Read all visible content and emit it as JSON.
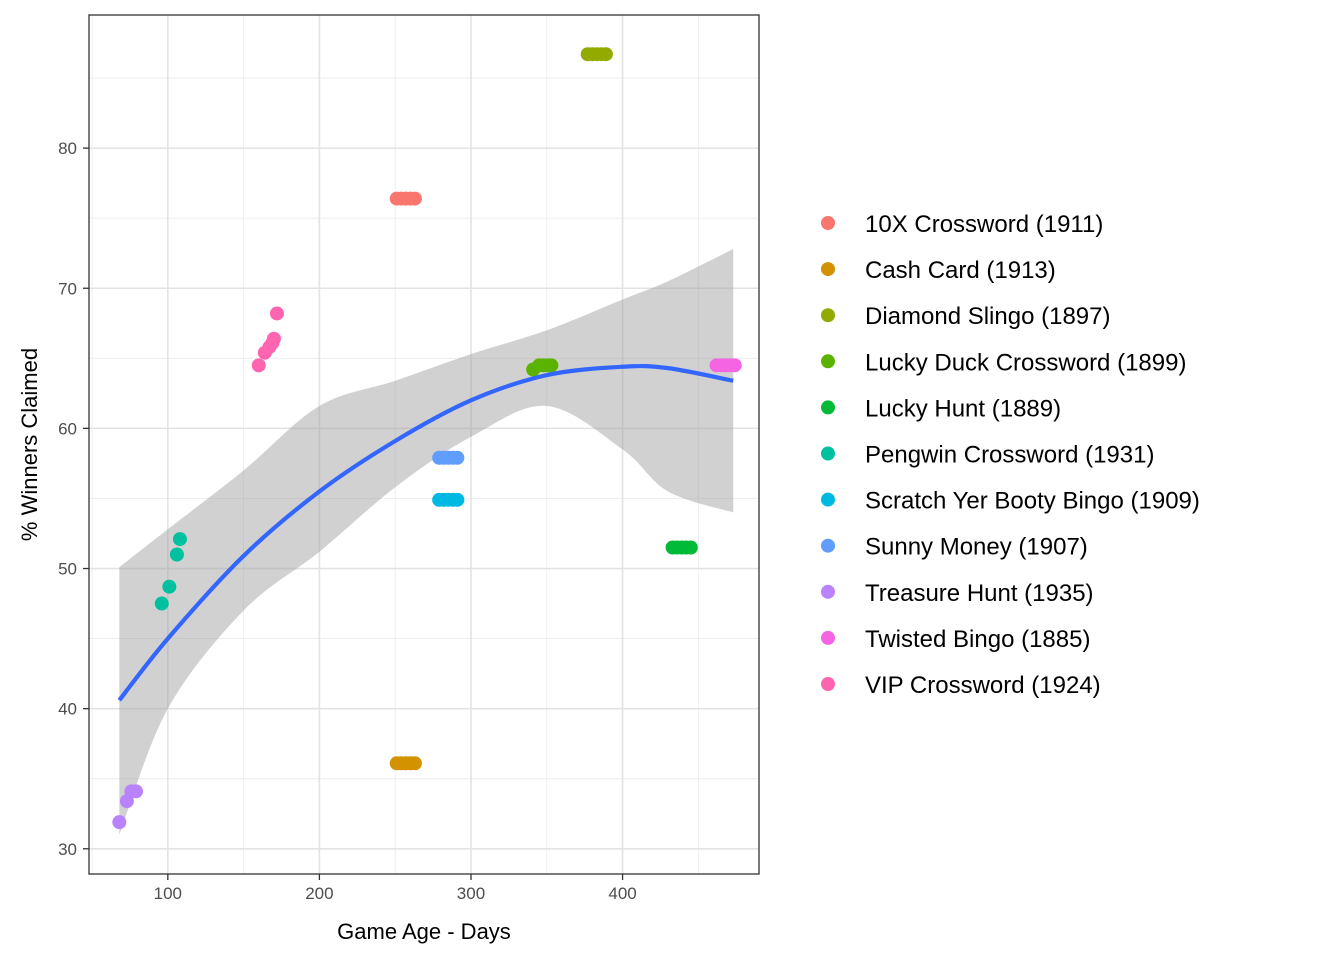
{
  "chart_data": {
    "type": "scatter",
    "title": "",
    "xlabel": "Game Age - Days",
    "ylabel": "% Winners Claimed",
    "xlim": [
      48,
      490
    ],
    "ylim": [
      28.2,
      89.5
    ],
    "x_ticks": [
      100,
      200,
      300,
      400
    ],
    "y_ticks": [
      30,
      40,
      50,
      60,
      70,
      80
    ],
    "grid": true,
    "legend": "right",
    "series": [
      {
        "name": "10X Crossword (1911)",
        "color": "#F8766D",
        "points": [
          [
            251,
            76.4
          ],
          [
            254,
            76.4
          ],
          [
            257,
            76.4
          ],
          [
            260,
            76.4
          ],
          [
            263,
            76.4
          ]
        ]
      },
      {
        "name": "Cash Card (1913)",
        "color": "#D39200",
        "points": [
          [
            251,
            36.1
          ],
          [
            254,
            36.1
          ],
          [
            257,
            36.1
          ],
          [
            260,
            36.1
          ],
          [
            263,
            36.1
          ]
        ]
      },
      {
        "name": "Diamond Slingo (1897)",
        "color": "#93AA00",
        "points": [
          [
            377,
            86.7
          ],
          [
            380,
            86.7
          ],
          [
            383,
            86.7
          ],
          [
            386,
            86.7
          ],
          [
            389,
            86.7
          ]
        ]
      },
      {
        "name": "Lucky Duck Crossword (1899)",
        "color": "#5BB300",
        "points": [
          [
            341,
            64.2
          ],
          [
            345,
            64.5
          ],
          [
            348,
            64.5
          ],
          [
            351,
            64.5
          ],
          [
            353,
            64.5
          ]
        ]
      },
      {
        "name": "Lucky Hunt (1889)",
        "color": "#00BA38",
        "points": [
          [
            433,
            51.5
          ],
          [
            436,
            51.5
          ],
          [
            439,
            51.5
          ],
          [
            442,
            51.5
          ],
          [
            445,
            51.5
          ]
        ]
      },
      {
        "name": "Pengwin Crossword (1931)",
        "color": "#00C19F",
        "points": [
          [
            96,
            47.5
          ],
          [
            101,
            48.7
          ],
          [
            106,
            51.0
          ],
          [
            108,
            52.1
          ]
        ]
      },
      {
        "name": "Scratch Yer Booty Bingo (1909)",
        "color": "#00B9E3",
        "points": [
          [
            279,
            54.9
          ],
          [
            282,
            54.9
          ],
          [
            285,
            54.9
          ],
          [
            288,
            54.9
          ],
          [
            291,
            54.9
          ]
        ]
      },
      {
        "name": "Sunny Money (1907)",
        "color": "#619CFF",
        "points": [
          [
            279,
            57.9
          ],
          [
            282,
            57.9
          ],
          [
            285,
            57.9
          ],
          [
            288,
            57.9
          ],
          [
            291,
            57.9
          ]
        ]
      },
      {
        "name": "Treasure Hunt (1935)",
        "color": "#B983FF",
        "points": [
          [
            68,
            31.9
          ],
          [
            73,
            33.4
          ],
          [
            76,
            34.1
          ],
          [
            79,
            34.1
          ]
        ]
      },
      {
        "name": "Twisted Bingo (1885)",
        "color": "#F564E3",
        "points": [
          [
            462,
            64.5
          ],
          [
            465,
            64.5
          ],
          [
            468,
            64.5
          ],
          [
            471,
            64.5
          ],
          [
            474,
            64.5
          ]
        ]
      },
      {
        "name": "VIP Crossword (1924)",
        "color": "#FF64B0",
        "points": [
          [
            160,
            64.5
          ],
          [
            164,
            65.4
          ],
          [
            167,
            65.8
          ],
          [
            169,
            66.1
          ],
          [
            170,
            66.4
          ],
          [
            172,
            68.2
          ]
        ]
      }
    ],
    "trend": {
      "method": "loess",
      "color": "#3366FF",
      "band_color": "#999999",
      "x": [
        68,
        100,
        150,
        200,
        250,
        300,
        350,
        400,
        430,
        473
      ],
      "y": [
        40.6,
        45.0,
        50.9,
        55.5,
        59.1,
        62.0,
        63.8,
        64.4,
        64.3,
        63.4
      ],
      "band_lower": [
        31.0,
        40.0,
        47.0,
        51.2,
        55.8,
        59.4,
        61.6,
        58.5,
        55.5,
        54.0
      ],
      "band_upper": [
        50.1,
        52.8,
        57.0,
        61.6,
        63.4,
        65.3,
        67.0,
        69.2,
        70.5,
        72.8
      ]
    }
  }
}
